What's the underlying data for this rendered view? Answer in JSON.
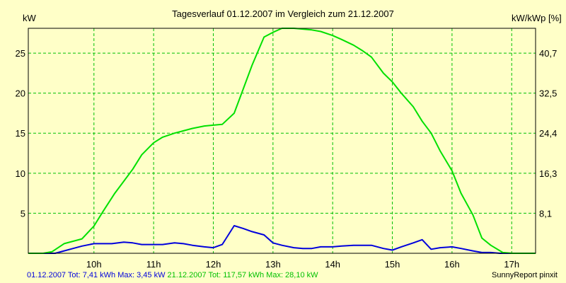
{
  "chart_data": {
    "type": "line",
    "title": "Tagesverlauf 01.12.2007 im Vergleich zum 21.12.2007",
    "ylabel_left": "kW",
    "ylabel_right": "kW/kWp [%]",
    "x_ticks": [
      "10h",
      "11h",
      "12h",
      "13h",
      "14h",
      "15h",
      "16h",
      "17h"
    ],
    "x_tick_values": [
      10,
      11,
      12,
      13,
      14,
      15,
      16,
      17
    ],
    "xlim": [
      8.9,
      17.4
    ],
    "ylim_left": [
      0,
      28.1
    ],
    "y_ticks_left": [
      "5",
      "10",
      "15",
      "20",
      "25"
    ],
    "y_tick_values_left": [
      5,
      10,
      15,
      20,
      25
    ],
    "y_ticks_right": [
      "8,1",
      "16,3",
      "24,4",
      "32,5",
      "40,7"
    ],
    "grid": true,
    "series": [
      {
        "name": "01.12.2007",
        "color": "#0000dc",
        "x": [
          8.9,
          9.35,
          9.5,
          9.65,
          9.8,
          10.0,
          10.15,
          10.3,
          10.5,
          10.65,
          10.8,
          11.0,
          11.15,
          11.35,
          11.5,
          11.65,
          11.85,
          12.0,
          12.15,
          12.35,
          12.5,
          12.65,
          12.85,
          13.0,
          13.15,
          13.35,
          13.5,
          13.65,
          13.8,
          14.0,
          14.15,
          14.35,
          14.5,
          14.65,
          14.85,
          15.0,
          15.15,
          15.35,
          15.5,
          15.65,
          15.8,
          16.0,
          16.15,
          16.35,
          16.5,
          16.65,
          16.8,
          17.0,
          17.4
        ],
        "values": [
          0,
          0,
          0.3,
          0.6,
          0.9,
          1.2,
          1.2,
          1.2,
          1.4,
          1.3,
          1.1,
          1.1,
          1.1,
          1.3,
          1.2,
          1.0,
          0.8,
          0.7,
          1.1,
          3.45,
          3.1,
          2.7,
          2.3,
          1.3,
          1.0,
          0.7,
          0.6,
          0.6,
          0.8,
          0.8,
          0.9,
          1.0,
          1.0,
          1.0,
          0.6,
          0.4,
          0.8,
          1.3,
          1.7,
          0.5,
          0.7,
          0.8,
          0.6,
          0.3,
          0.1,
          0.1,
          0,
          0,
          0
        ]
      },
      {
        "name": "21.12.2007",
        "color": "#00e000",
        "x": [
          8.9,
          9.15,
          9.3,
          9.5,
          9.8,
          10.0,
          10.15,
          10.35,
          10.5,
          10.65,
          10.8,
          11.0,
          11.15,
          11.35,
          11.5,
          11.65,
          11.85,
          12.0,
          12.15,
          12.35,
          12.5,
          12.65,
          12.85,
          13.0,
          13.15,
          13.35,
          13.5,
          13.65,
          13.8,
          14.0,
          14.15,
          14.35,
          14.5,
          14.65,
          14.85,
          15.0,
          15.15,
          15.35,
          15.5,
          15.65,
          15.8,
          16.0,
          16.15,
          16.35,
          16.5,
          16.65,
          16.85,
          17.0,
          17.4
        ],
        "values": [
          0,
          0,
          0.2,
          1.2,
          1.8,
          3.4,
          5.2,
          7.5,
          9.0,
          10.5,
          12.3,
          13.8,
          14.5,
          15.0,
          15.3,
          15.6,
          15.9,
          16.0,
          16.1,
          17.5,
          20.5,
          23.5,
          27.0,
          27.6,
          28.1,
          28.1,
          28.0,
          27.9,
          27.7,
          27.2,
          26.7,
          26.0,
          25.3,
          24.5,
          22.5,
          21.4,
          20.0,
          18.3,
          16.5,
          15.0,
          12.8,
          10.3,
          7.5,
          4.8,
          1.9,
          1.0,
          0.1,
          0,
          0
        ]
      }
    ]
  },
  "footer": {
    "series1_text": "01.12.2007 Tot: 7,41 kWh Max: 3,45 kW",
    "series2_text": "21.12.2007 Tot: 117,57 kWh Max: 28,10 kW",
    "credit": "SunnyReport pinxit"
  }
}
